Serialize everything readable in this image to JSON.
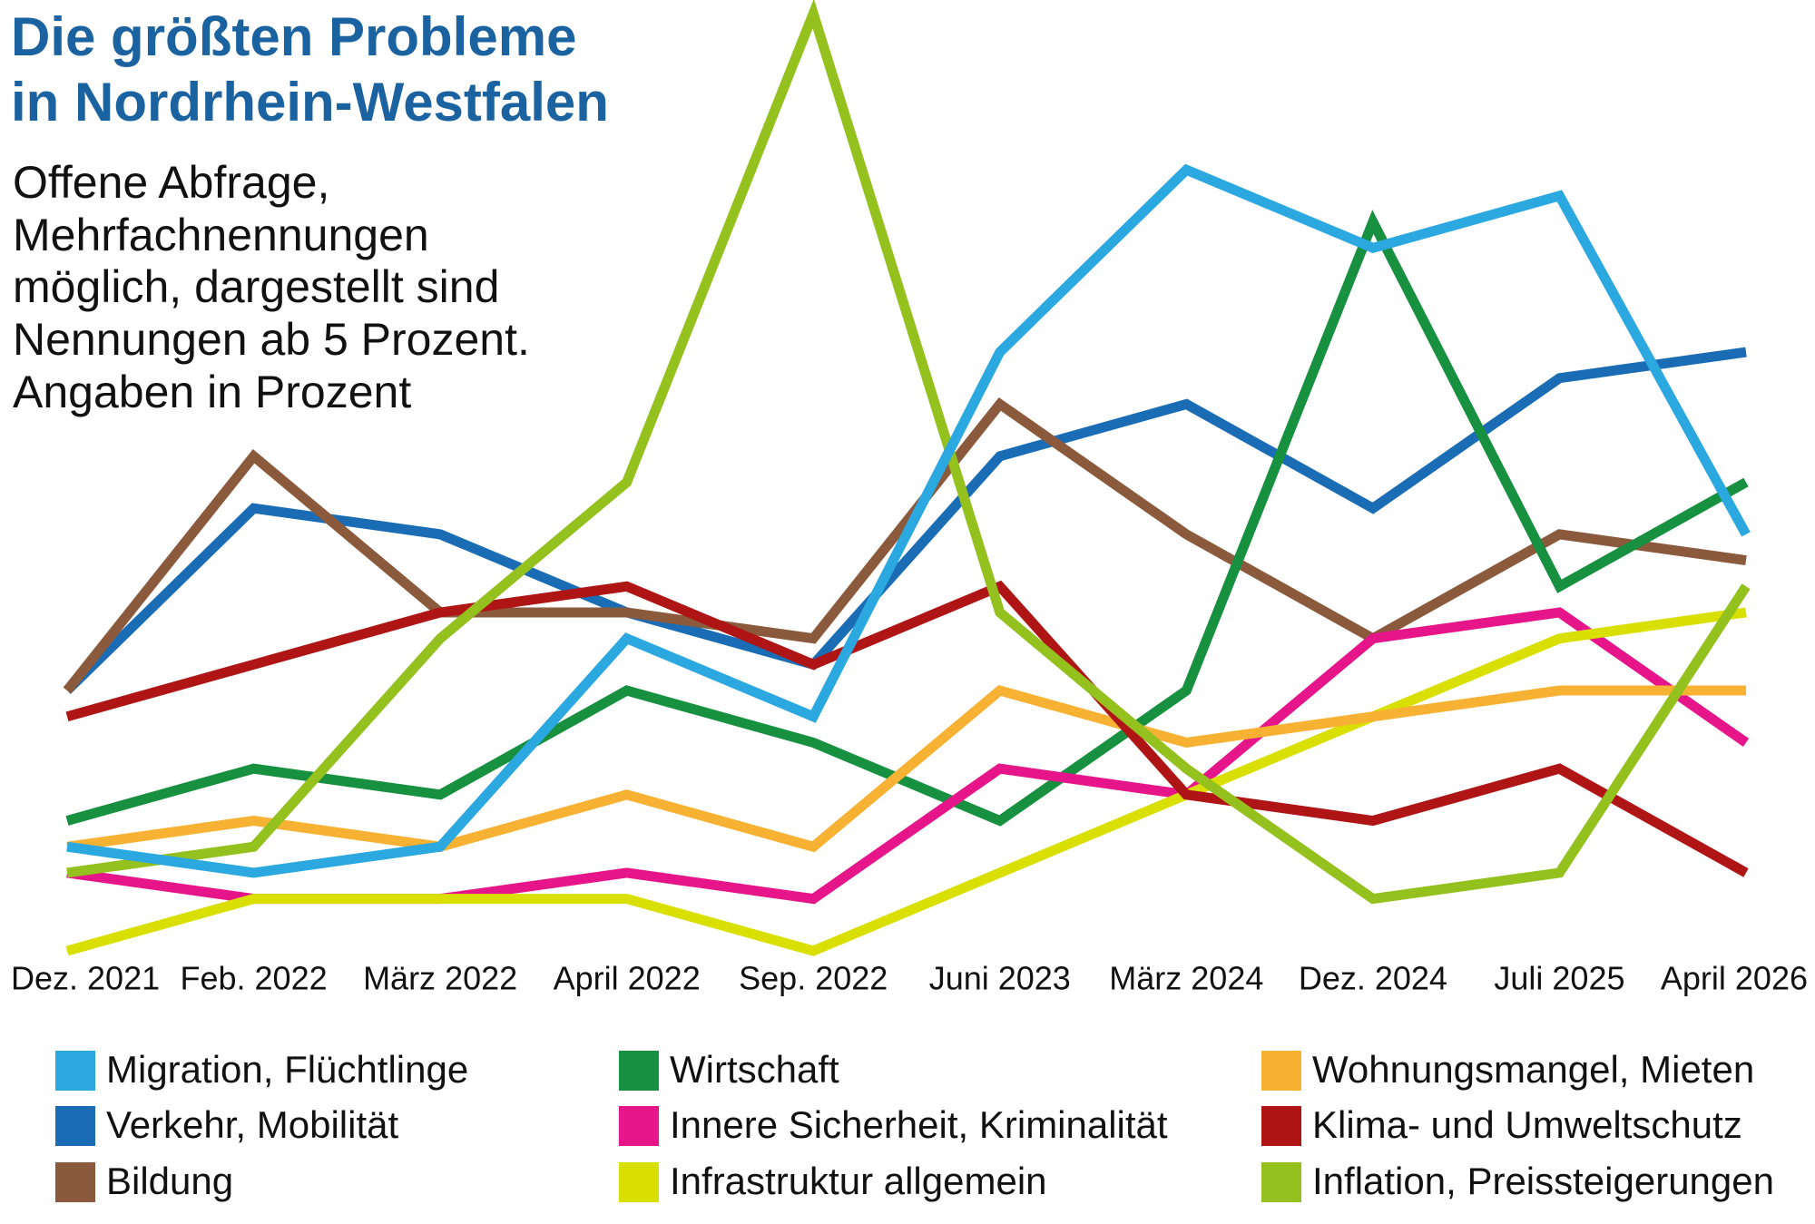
{
  "chart_data": {
    "type": "line",
    "title": [
      "Die größten Probleme",
      "in Nordrhein-Westfalen"
    ],
    "subtitle": [
      "Offene Abfrage,",
      "Mehrfachnennungen",
      "möglich, dargestellt sind",
      "Nennungen ab 5 Prozent.",
      "Angaben in Prozent"
    ],
    "categories": [
      "Dez. 2021",
      "Feb. 2022",
      "März 2022",
      "April 2022",
      "Sep. 2022",
      "Juni 2023",
      "März 2024",
      "Dez. 2024",
      "Juli 2025",
      "April 2026"
    ],
    "ylim": [
      5,
      41
    ],
    "series": [
      {
        "name": "Migration, Flüchtlinge",
        "color": "#2ba8e0",
        "values": [
          9,
          8,
          9,
          17,
          14,
          28,
          35,
          32,
          34,
          21
        ]
      },
      {
        "name": "Verkehr, Mobilität",
        "color": "#1a6db5",
        "values": [
          15,
          22,
          21,
          18,
          16,
          24,
          26,
          22,
          27,
          28
        ]
      },
      {
        "name": "Bildung",
        "color": "#8b5a3c",
        "values": [
          15,
          24,
          18,
          18,
          17,
          26,
          21,
          17,
          21,
          20
        ]
      },
      {
        "name": "Wirtschaft",
        "color": "#17903f",
        "values": [
          10,
          12,
          11,
          15,
          13,
          10,
          15,
          33,
          19,
          23
        ]
      },
      {
        "name": "Innere Sicherheit, Kriminalität",
        "color": "#e6168a",
        "values": [
          8,
          7,
          7,
          8,
          7,
          12,
          11,
          17,
          18,
          13
        ]
      },
      {
        "name": "Infrastruktur allgemein",
        "color": "#d9e000",
        "values": [
          5,
          7,
          7,
          7,
          5,
          8,
          11,
          14,
          17,
          18
        ]
      },
      {
        "name": "Wohnungsmangel, Mieten",
        "color": "#f7b233",
        "values": [
          9,
          10,
          9,
          11,
          9,
          15,
          13,
          14,
          15,
          15
        ]
      },
      {
        "name": "Klima- und Umweltschutz",
        "color": "#b01515",
        "values": [
          14,
          16,
          18,
          19,
          16,
          19,
          11,
          10,
          12,
          8
        ]
      },
      {
        "name": "Inflation, Preissteigerungen",
        "color": "#95c11f",
        "values": [
          8,
          9,
          17,
          23,
          41,
          18,
          12,
          7,
          8,
          19
        ]
      }
    ]
  }
}
